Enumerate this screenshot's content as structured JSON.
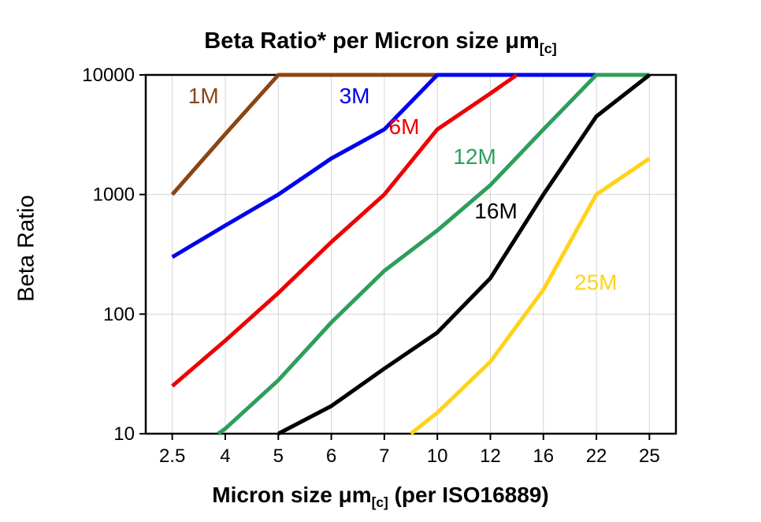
{
  "title": {
    "text": "Beta Ratio* per Micron size ",
    "mu": "μm",
    "sub": "[c]"
  },
  "y_axis": {
    "label": "Beta Ratio"
  },
  "x_axis": {
    "label_prefix": "Micron size ",
    "label_mu": "μm",
    "label_sub": "[c]",
    "label_suffix": " (per ISO16889)"
  },
  "chart_data": {
    "type": "line",
    "title": "Beta Ratio* per Micron size μm[c]",
    "xlabel": "Micron size μm[c] (per ISO16889)",
    "ylabel": "Beta Ratio",
    "y_scale": "log",
    "ylim": [
      10,
      10000
    ],
    "grid": true,
    "x_categories": [
      2.5,
      4,
      5,
      6,
      7,
      10,
      12,
      16,
      22,
      25
    ],
    "x_tick_labels": [
      "2.5",
      "4",
      "5",
      "6",
      "7",
      "10",
      "12",
      "16",
      "22",
      "25"
    ],
    "y_ticks": [
      10,
      100,
      1000,
      10000
    ],
    "y_tick_labels": [
      "10",
      "100",
      "1000",
      "10000"
    ],
    "series": [
      {
        "name": "1M",
        "color": "#8B4513",
        "label": {
          "text": "1M",
          "x": 2.95,
          "y": 5800
        },
        "points": [
          [
            2.5,
            1000
          ],
          [
            4,
            3200
          ],
          [
            5,
            10000
          ],
          [
            10,
            10000
          ]
        ]
      },
      {
        "name": "3M",
        "color": "#0000EE",
        "label": {
          "text": "3M",
          "x": 6.15,
          "y": 5800
        },
        "points": [
          [
            2.5,
            300
          ],
          [
            4,
            550
          ],
          [
            5,
            1000
          ],
          [
            6,
            2000
          ],
          [
            7,
            3500
          ],
          [
            10,
            10000
          ],
          [
            22,
            10000
          ]
        ]
      },
      {
        "name": "6M",
        "color": "#EE0000",
        "label": {
          "text": "6M",
          "x": 7.25,
          "y": 3200
        },
        "points": [
          [
            2.5,
            25
          ],
          [
            4,
            60
          ],
          [
            5,
            150
          ],
          [
            6,
            400
          ],
          [
            7,
            1000
          ],
          [
            10,
            3500
          ],
          [
            12,
            7000
          ],
          [
            14,
            10000
          ]
        ]
      },
      {
        "name": "12M",
        "color": "#2E9E5B",
        "label": {
          "text": "12M",
          "x": 10.6,
          "y": 1800
        },
        "points": [
          [
            3.8,
            10
          ],
          [
            4,
            11
          ],
          [
            5,
            28
          ],
          [
            6,
            85
          ],
          [
            7,
            230
          ],
          [
            10,
            500
          ],
          [
            12,
            1200
          ],
          [
            16,
            3500
          ],
          [
            22,
            10000
          ],
          [
            25,
            10000
          ]
        ]
      },
      {
        "name": "16M",
        "color": "#000000",
        "label": {
          "text": "16M",
          "x": 11.4,
          "y": 630
        },
        "points": [
          [
            5,
            10
          ],
          [
            6,
            17
          ],
          [
            7,
            35
          ],
          [
            10,
            70
          ],
          [
            12,
            200
          ],
          [
            16,
            1000
          ],
          [
            22,
            4500
          ],
          [
            25,
            10000
          ]
        ]
      },
      {
        "name": "25M",
        "color": "#FFD21C",
        "label": {
          "text": "25M",
          "x": 19.5,
          "y": 160
        },
        "points": [
          [
            8.5,
            10
          ],
          [
            10,
            15
          ],
          [
            12,
            40
          ],
          [
            16,
            160
          ],
          [
            22,
            1000
          ],
          [
            25,
            2000
          ]
        ]
      }
    ]
  }
}
